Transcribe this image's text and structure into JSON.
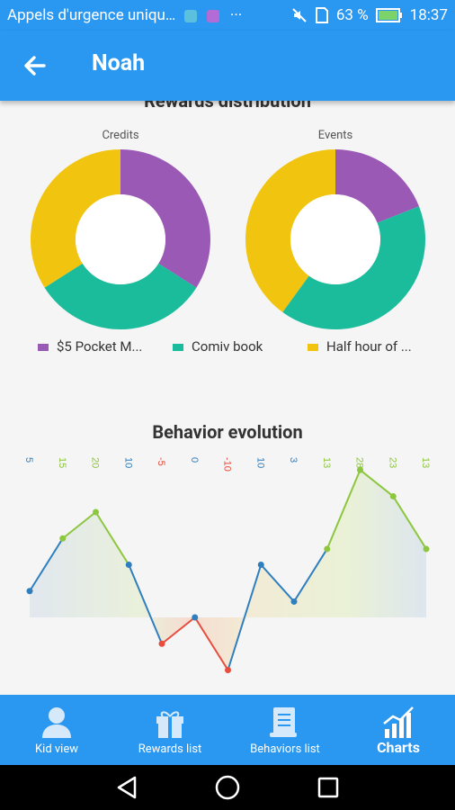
{
  "status_bar": {
    "carrier_text": "Appels d'urgence uniqu…",
    "dots": "···",
    "battery": "63 %",
    "time": "18:37"
  },
  "app_bar": {
    "title": "Noah"
  },
  "rewards": {
    "section_title": "Rewards distribution",
    "charts": [
      {
        "label": "Credits",
        "slices": [
          {
            "category": "$5 Pocket M...",
            "value": 34,
            "color": "#9b59b6"
          },
          {
            "category": "Comiv book",
            "value": 32,
            "color": "#1abc9c"
          },
          {
            "category": "Half hour of ...",
            "value": 34,
            "color": "#f1c40f"
          }
        ]
      },
      {
        "label": "Events",
        "slices": [
          {
            "category": "$5 Pocket M...",
            "value": 19,
            "color": "#9b59b6"
          },
          {
            "category": "Comiv book",
            "value": 41,
            "color": "#1abc9c"
          },
          {
            "category": "Half hour of ...",
            "value": 40,
            "color": "#f1c40f"
          }
        ]
      }
    ],
    "legend": [
      {
        "label": "$5 Pocket M...",
        "color": "#9b59b6"
      },
      {
        "label": "Comiv book",
        "color": "#1abc9c"
      },
      {
        "label": "Half hour of ...",
        "color": "#f1c40f"
      }
    ]
  },
  "behavior": {
    "section_title": "Behavior evolution",
    "colors": {
      "positive": "#8dc63f",
      "negative": "#e74c3c",
      "neutral": "#2f7fbf"
    }
  },
  "chart_data": [
    {
      "type": "pie",
      "title": "Credits",
      "categories": [
        "$5 Pocket M...",
        "Comiv book",
        "Half hour of ..."
      ],
      "values": [
        34,
        32,
        34
      ]
    },
    {
      "type": "pie",
      "title": "Events",
      "categories": [
        "$5 Pocket M...",
        "Comiv book",
        "Half hour of ..."
      ],
      "values": [
        19,
        41,
        40
      ]
    },
    {
      "type": "line",
      "title": "Behavior evolution",
      "values": [
        5,
        15,
        20,
        10,
        -5,
        0,
        -10,
        10,
        3,
        13,
        28,
        23,
        13
      ],
      "data_labels": [
        "5",
        "15",
        "20",
        "10",
        "-5",
        "0",
        "-10",
        "10",
        "3",
        "13",
        "28",
        "23",
        "13"
      ]
    }
  ],
  "bottom_nav": {
    "tabs": [
      {
        "label": "Kid view",
        "icon": "person-icon"
      },
      {
        "label": "Rewards list",
        "icon": "gift-icon"
      },
      {
        "label": "Behaviors list",
        "icon": "scroll-icon"
      },
      {
        "label": "Charts",
        "icon": "chart-icon"
      }
    ]
  },
  "system_nav": {
    "icons": [
      "back-triangle-icon",
      "home-circle-icon",
      "recents-square-icon"
    ]
  }
}
